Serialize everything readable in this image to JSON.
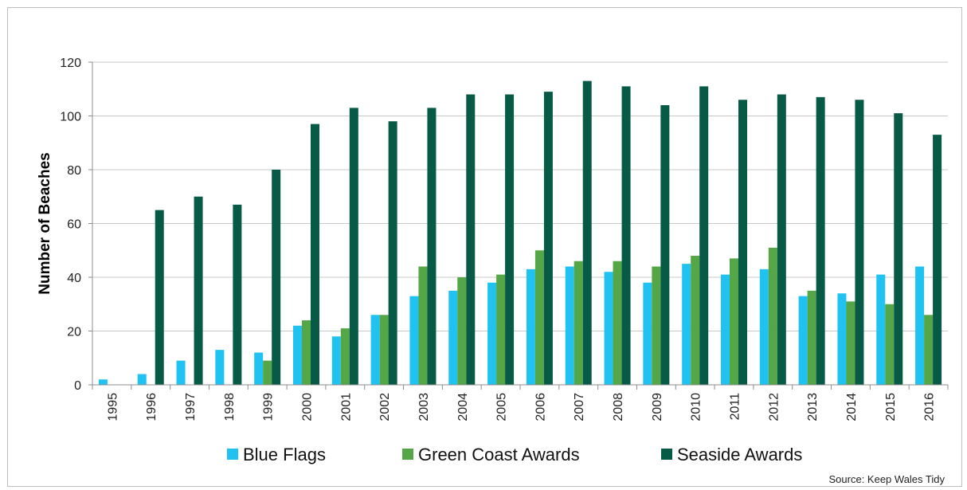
{
  "chart_data": {
    "type": "bar",
    "ylabel": "Number of Beaches",
    "ylim": [
      0,
      120
    ],
    "yticks": [
      0,
      20,
      40,
      60,
      80,
      100,
      120
    ],
    "categories": [
      "1995",
      "1996",
      "1997",
      "1998",
      "1999",
      "2000",
      "2001",
      "2002",
      "2003",
      "2004",
      "2005",
      "2006",
      "2007",
      "2008",
      "2009",
      "2010",
      "2011",
      "2012",
      "2013",
      "2014",
      "2015",
      "2016"
    ],
    "series": [
      {
        "name": "Blue Flags",
        "color": "#1fc2f1",
        "values": [
          2,
          4,
          9,
          13,
          12,
          22,
          18,
          26,
          33,
          35,
          38,
          43,
          44,
          42,
          38,
          45,
          41,
          43,
          33,
          34,
          41,
          44
        ]
      },
      {
        "name": "Green Coast Awards",
        "color": "#55a646",
        "values": [
          0,
          0,
          0,
          0,
          9,
          24,
          21,
          26,
          44,
          40,
          41,
          50,
          46,
          46,
          44,
          48,
          47,
          51,
          35,
          31,
          30,
          26
        ]
      },
      {
        "name": "Seaside Awards",
        "color": "#065a46",
        "values": [
          0,
          65,
          70,
          67,
          80,
          97,
          103,
          98,
          103,
          108,
          108,
          109,
          113,
          111,
          104,
          111,
          106,
          108,
          107,
          106,
          101,
          93
        ]
      }
    ],
    "grid": true,
    "legend": "bottom",
    "source": "Source: Keep Wales Tidy"
  }
}
